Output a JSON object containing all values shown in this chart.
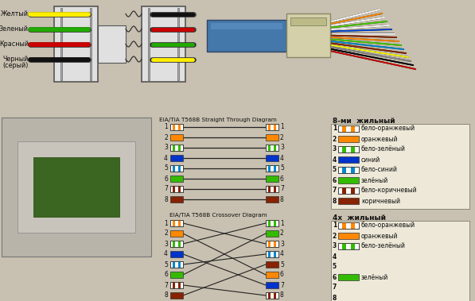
{
  "bg_color": "#c8c0b0",
  "straight_title": "EIA/TIA T568B Straight Through Diagram",
  "crossover_title": "EIA/TIA T568B Crossover Diagram",
  "legend8_title": "8-ми  жильный",
  "legend4_title": "4х  жильный",
  "wire_colors": [
    {
      "name": "бело-оранжевый",
      "c1": "#ffffff",
      "c2": "#ff8800",
      "pat": "stripe_orange"
    },
    {
      "name": "оранжевый",
      "c1": "#ff8800",
      "c2": "#ff8800",
      "pat": "solid"
    },
    {
      "name": "бело-зелёный",
      "c1": "#ffffff",
      "c2": "#33bb00",
      "pat": "stripe_green"
    },
    {
      "name": "синий",
      "c1": "#0033cc",
      "c2": "#0033cc",
      "pat": "solid"
    },
    {
      "name": "бело-синий",
      "c1": "#ffffff",
      "c2": "#0088cc",
      "pat": "stripe_blue"
    },
    {
      "name": "зелёный",
      "c1": "#33bb00",
      "c2": "#33bb00",
      "pat": "solid"
    },
    {
      "name": "бело-коричневый",
      "c1": "#ffffff",
      "c2": "#882200",
      "pat": "stripe_brown"
    },
    {
      "name": "коричневый",
      "c1": "#882200",
      "c2": "#882200",
      "pat": "solid"
    }
  ],
  "wire4_colors": [
    {
      "name": "бело-оранжевый",
      "c1": "#ffffff",
      "c2": "#ff8800",
      "pat": "stripe_orange"
    },
    {
      "name": "оранжевый",
      "c1": "#ff8800",
      "c2": "#ff8800",
      "pat": "solid"
    },
    {
      "name": "бело-зелёный",
      "c1": "#ffffff",
      "c2": "#33bb00",
      "pat": "stripe_green"
    },
    {
      "name": "",
      "c1": "#cccccc",
      "c2": "#cccccc",
      "pat": "none"
    },
    {
      "name": "",
      "c1": "#cccccc",
      "c2": "#cccccc",
      "pat": "none"
    },
    {
      "name": "зелёный",
      "c1": "#33bb00",
      "c2": "#33bb00",
      "pat": "solid"
    },
    {
      "name": "",
      "c1": "#cccccc",
      "c2": "#cccccc",
      "pat": "none"
    },
    {
      "name": "",
      "c1": "#cccccc",
      "c2": "#cccccc",
      "pat": "none"
    }
  ],
  "crossover_right": [
    2,
    5,
    0,
    6,
    3,
    1,
    7,
    4
  ],
  "top_labels": [
    "Желтый",
    "Зеленый",
    "Красный",
    "Черный\n(серый)"
  ],
  "top_colors_left": [
    "#ffee00",
    "#22aa00",
    "#cc0000",
    "#111111"
  ],
  "top_colors_right": [
    "#111111",
    "#cc0000",
    "#22aa00",
    "#ffee00"
  ],
  "socket_photo": true
}
